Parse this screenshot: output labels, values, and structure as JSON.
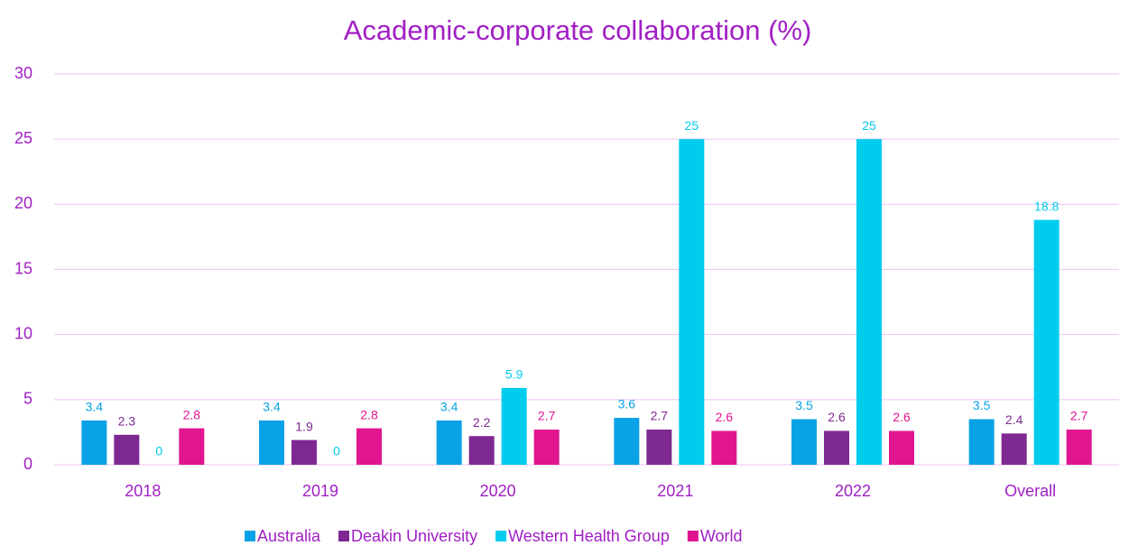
{
  "chart_data": {
    "type": "bar",
    "title": "Academic-corporate collaboration (%)",
    "categories": [
      "2018",
      "2019",
      "2020",
      "2021",
      "2022",
      "Overall"
    ],
    "series": [
      {
        "name": "Australia",
        "color": "#0aa2e6",
        "values": [
          3.4,
          3.4,
          3.4,
          3.6,
          3.5,
          3.5
        ]
      },
      {
        "name": "Deakin University",
        "color": "#7e2891",
        "values": [
          2.3,
          1.9,
          2.2,
          2.7,
          2.6,
          2.4
        ]
      },
      {
        "name": "Western Health Group",
        "color": "#00ccee",
        "values": [
          0,
          0,
          5.9,
          25,
          25,
          18.8
        ]
      },
      {
        "name": "World",
        "color": "#e0158f",
        "values": [
          2.8,
          2.8,
          2.7,
          2.6,
          2.6,
          2.7
        ]
      }
    ],
    "ylim": [
      0,
      30
    ],
    "yticks": [
      0,
      5,
      10,
      15,
      20,
      25,
      30
    ],
    "grid": true,
    "legend": "bottom"
  }
}
